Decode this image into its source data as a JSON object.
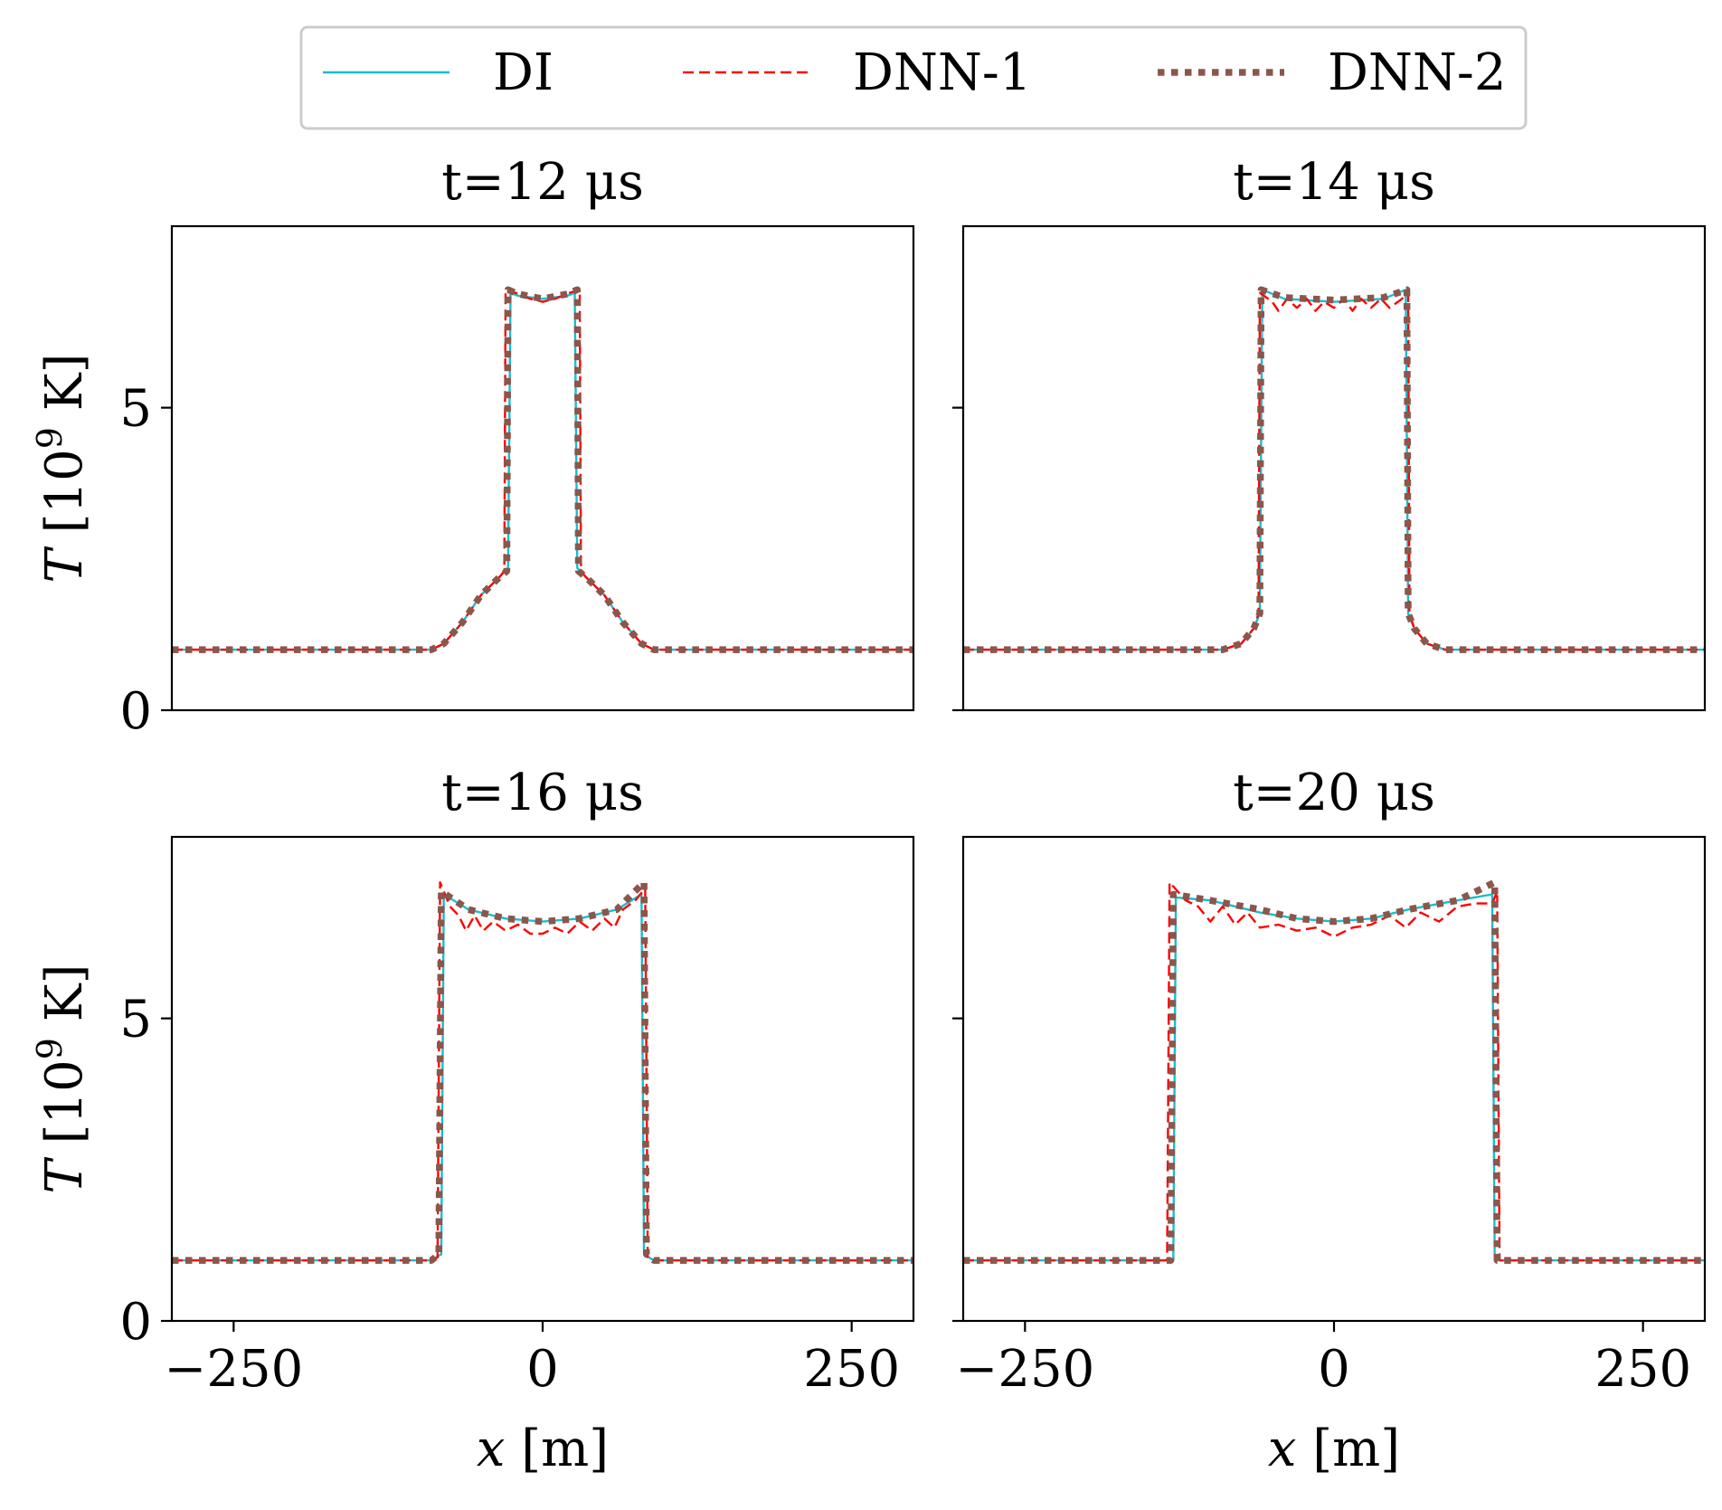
{
  "chart_data": {
    "type": "line",
    "legend": {
      "placement": "top-center",
      "entries": [
        {
          "label": "DI",
          "color": "#17becf",
          "style": "solid"
        },
        {
          "label": "DNN-1",
          "color": "#ff0000",
          "style": "dashed"
        },
        {
          "label": "DNN-2",
          "color": "#8c564b",
          "style": "dotted"
        }
      ]
    },
    "ylabel_var": "T",
    "ylabel_units": "[10",
    "ylabel_exp": "9",
    "ylabel_unit": " K]",
    "xlabel_var": "x",
    "xlabel_unit": " [m]",
    "xlim": [
      -300,
      300
    ],
    "ylim": [
      0,
      8
    ],
    "xticks": [
      -250,
      0,
      250
    ],
    "xtick_labels": [
      "−250",
      "0",
      "250"
    ],
    "yticks": [
      0,
      5
    ],
    "ytick_labels": [
      "0",
      "5"
    ],
    "panels": [
      {
        "title": "t=12 μs",
        "series": [
          {
            "name": "DI",
            "points": [
              [
                -300,
                1
              ],
              [
                -90,
                1
              ],
              [
                -80,
                1.1
              ],
              [
                -65,
                1.45
              ],
              [
                -50,
                1.9
              ],
              [
                -35,
                2.2
              ],
              [
                -28,
                2.35
              ],
              [
                -26,
                6.9
              ],
              [
                -20,
                6.85
              ],
              [
                0,
                6.8
              ],
              [
                20,
                6.85
              ],
              [
                26,
                6.9
              ],
              [
                28,
                2.35
              ],
              [
                35,
                2.2
              ],
              [
                50,
                1.9
              ],
              [
                65,
                1.45
              ],
              [
                80,
                1.1
              ],
              [
                90,
                1
              ],
              [
                300,
                1
              ]
            ]
          },
          {
            "name": "DNN-1",
            "points": [
              [
                -300,
                1
              ],
              [
                -90,
                1
              ],
              [
                -80,
                1.1
              ],
              [
                -65,
                1.45
              ],
              [
                -50,
                1.9
              ],
              [
                -35,
                2.2
              ],
              [
                -31,
                2.3
              ],
              [
                -30,
                6.95
              ],
              [
                -22,
                6.9
              ],
              [
                -10,
                6.8
              ],
              [
                0,
                6.75
              ],
              [
                10,
                6.8
              ],
              [
                22,
                6.9
              ],
              [
                30,
                6.95
              ],
              [
                31,
                2.3
              ],
              [
                35,
                2.2
              ],
              [
                50,
                1.9
              ],
              [
                65,
                1.45
              ],
              [
                80,
                1.1
              ],
              [
                90,
                1
              ],
              [
                300,
                1
              ]
            ]
          },
          {
            "name": "DNN-2",
            "points": [
              [
                -300,
                1
              ],
              [
                -90,
                1
              ],
              [
                -80,
                1.1
              ],
              [
                -65,
                1.45
              ],
              [
                -50,
                1.9
              ],
              [
                -35,
                2.2
              ],
              [
                -29,
                2.3
              ],
              [
                -28,
                6.95
              ],
              [
                -20,
                6.88
              ],
              [
                0,
                6.8
              ],
              [
                20,
                6.88
              ],
              [
                28,
                6.95
              ],
              [
                29,
                2.3
              ],
              [
                35,
                2.2
              ],
              [
                50,
                1.9
              ],
              [
                65,
                1.45
              ],
              [
                80,
                1.1
              ],
              [
                90,
                1
              ],
              [
                300,
                1
              ]
            ]
          }
        ]
      },
      {
        "title": "t=14 μs",
        "series": [
          {
            "name": "DI",
            "points": [
              [
                -300,
                1
              ],
              [
                -90,
                1
              ],
              [
                -75,
                1.1
              ],
              [
                -65,
                1.35
              ],
              [
                -60,
                1.6
              ],
              [
                -58,
                6.95
              ],
              [
                -40,
                6.8
              ],
              [
                0,
                6.75
              ],
              [
                40,
                6.8
              ],
              [
                58,
                6.95
              ],
              [
                60,
                1.6
              ],
              [
                65,
                1.35
              ],
              [
                75,
                1.1
              ],
              [
                90,
                1
              ],
              [
                300,
                1
              ]
            ]
          },
          {
            "name": "DNN-1",
            "points": [
              [
                -300,
                1
              ],
              [
                -90,
                1
              ],
              [
                -75,
                1.1
              ],
              [
                -65,
                1.35
              ],
              [
                -61,
                1.6
              ],
              [
                -60,
                6.9
              ],
              [
                -50,
                6.75
              ],
              [
                -45,
                6.6
              ],
              [
                -38,
                6.8
              ],
              [
                -30,
                6.65
              ],
              [
                -22,
                6.8
              ],
              [
                -15,
                6.6
              ],
              [
                -8,
                6.75
              ],
              [
                0,
                6.65
              ],
              [
                8,
                6.8
              ],
              [
                15,
                6.6
              ],
              [
                22,
                6.8
              ],
              [
                30,
                6.65
              ],
              [
                38,
                6.8
              ],
              [
                45,
                6.65
              ],
              [
                55,
                6.8
              ],
              [
                60,
                6.9
              ],
              [
                61,
                1.6
              ],
              [
                65,
                1.35
              ],
              [
                75,
                1.1
              ],
              [
                90,
                1
              ],
              [
                300,
                1
              ]
            ]
          },
          {
            "name": "DNN-2",
            "points": [
              [
                -300,
                1
              ],
              [
                -90,
                1
              ],
              [
                -75,
                1.1
              ],
              [
                -65,
                1.35
              ],
              [
                -60,
                1.6
              ],
              [
                -59,
                6.95
              ],
              [
                -40,
                6.82
              ],
              [
                0,
                6.78
              ],
              [
                40,
                6.82
              ],
              [
                59,
                6.95
              ],
              [
                60,
                1.6
              ],
              [
                65,
                1.35
              ],
              [
                75,
                1.1
              ],
              [
                90,
                1
              ],
              [
                300,
                1
              ]
            ]
          }
        ]
      },
      {
        "title": "t=16 μs",
        "series": [
          {
            "name": "DI",
            "points": [
              [
                -300,
                1
              ],
              [
                -90,
                1
              ],
              [
                -82,
                1.1
              ],
              [
                -80,
                7.05
              ],
              [
                -60,
                6.8
              ],
              [
                -30,
                6.65
              ],
              [
                0,
                6.6
              ],
              [
                30,
                6.65
              ],
              [
                60,
                6.8
              ],
              [
                80,
                7.05
              ],
              [
                82,
                1.1
              ],
              [
                90,
                1
              ],
              [
                300,
                1
              ]
            ]
          },
          {
            "name": "DNN-1",
            "points": [
              [
                -300,
                1
              ],
              [
                -92,
                1
              ],
              [
                -85,
                1.05
              ],
              [
                -83,
                7.25
              ],
              [
                -75,
                6.85
              ],
              [
                -68,
                6.7
              ],
              [
                -62,
                6.45
              ],
              [
                -55,
                6.7
              ],
              [
                -48,
                6.45
              ],
              [
                -40,
                6.6
              ],
              [
                -30,
                6.45
              ],
              [
                -20,
                6.55
              ],
              [
                -10,
                6.4
              ],
              [
                0,
                6.4
              ],
              [
                10,
                6.5
              ],
              [
                20,
                6.4
              ],
              [
                30,
                6.6
              ],
              [
                40,
                6.45
              ],
              [
                50,
                6.65
              ],
              [
                58,
                6.5
              ],
              [
                65,
                6.8
              ],
              [
                75,
                6.95
              ],
              [
                83,
                7.15
              ],
              [
                85,
                1.05
              ],
              [
                92,
                1
              ],
              [
                300,
                1
              ]
            ]
          },
          {
            "name": "DNN-2",
            "points": [
              [
                -300,
                1
              ],
              [
                -90,
                1
              ],
              [
                -84,
                1.1
              ],
              [
                -82,
                7.1
              ],
              [
                -60,
                6.8
              ],
              [
                -30,
                6.65
              ],
              [
                0,
                6.6
              ],
              [
                30,
                6.65
              ],
              [
                60,
                6.8
              ],
              [
                82,
                7.25
              ],
              [
                84,
                1.1
              ],
              [
                90,
                1
              ],
              [
                300,
                1
              ]
            ]
          }
        ]
      },
      {
        "title": "t=20 μs",
        "series": [
          {
            "name": "DI",
            "points": [
              [
                -300,
                1
              ],
              [
                -130,
                1
              ],
              [
                -128,
                7.0
              ],
              [
                -100,
                6.95
              ],
              [
                -60,
                6.75
              ],
              [
                -30,
                6.65
              ],
              [
                0,
                6.6
              ],
              [
                30,
                6.65
              ],
              [
                60,
                6.8
              ],
              [
                100,
                6.95
              ],
              [
                128,
                7.05
              ],
              [
                130,
                1
              ],
              [
                300,
                1
              ]
            ]
          },
          {
            "name": "DNN-1",
            "points": [
              [
                -300,
                1
              ],
              [
                -135,
                1
              ],
              [
                -133,
                7.25
              ],
              [
                -120,
                6.95
              ],
              [
                -110,
                6.85
              ],
              [
                -100,
                6.6
              ],
              [
                -90,
                6.85
              ],
              [
                -80,
                6.55
              ],
              [
                -70,
                6.75
              ],
              [
                -60,
                6.5
              ],
              [
                -45,
                6.55
              ],
              [
                -30,
                6.45
              ],
              [
                -15,
                6.5
              ],
              [
                0,
                6.35
              ],
              [
                15,
                6.5
              ],
              [
                30,
                6.55
              ],
              [
                45,
                6.7
              ],
              [
                58,
                6.5
              ],
              [
                70,
                6.75
              ],
              [
                85,
                6.6
              ],
              [
                100,
                6.85
              ],
              [
                115,
                6.9
              ],
              [
                128,
                6.9
              ],
              [
                132,
                7.1
              ],
              [
                134,
                1
              ],
              [
                300,
                1
              ]
            ]
          },
          {
            "name": "DNN-2",
            "points": [
              [
                -300,
                1
              ],
              [
                -132,
                1
              ],
              [
                -130,
                7.05
              ],
              [
                -100,
                6.95
              ],
              [
                -60,
                6.8
              ],
              [
                -30,
                6.65
              ],
              [
                0,
                6.6
              ],
              [
                30,
                6.65
              ],
              [
                60,
                6.8
              ],
              [
                100,
                6.95
              ],
              [
                130,
                7.25
              ],
              [
                132,
                1
              ],
              [
                300,
                1
              ]
            ]
          }
        ]
      }
    ]
  }
}
